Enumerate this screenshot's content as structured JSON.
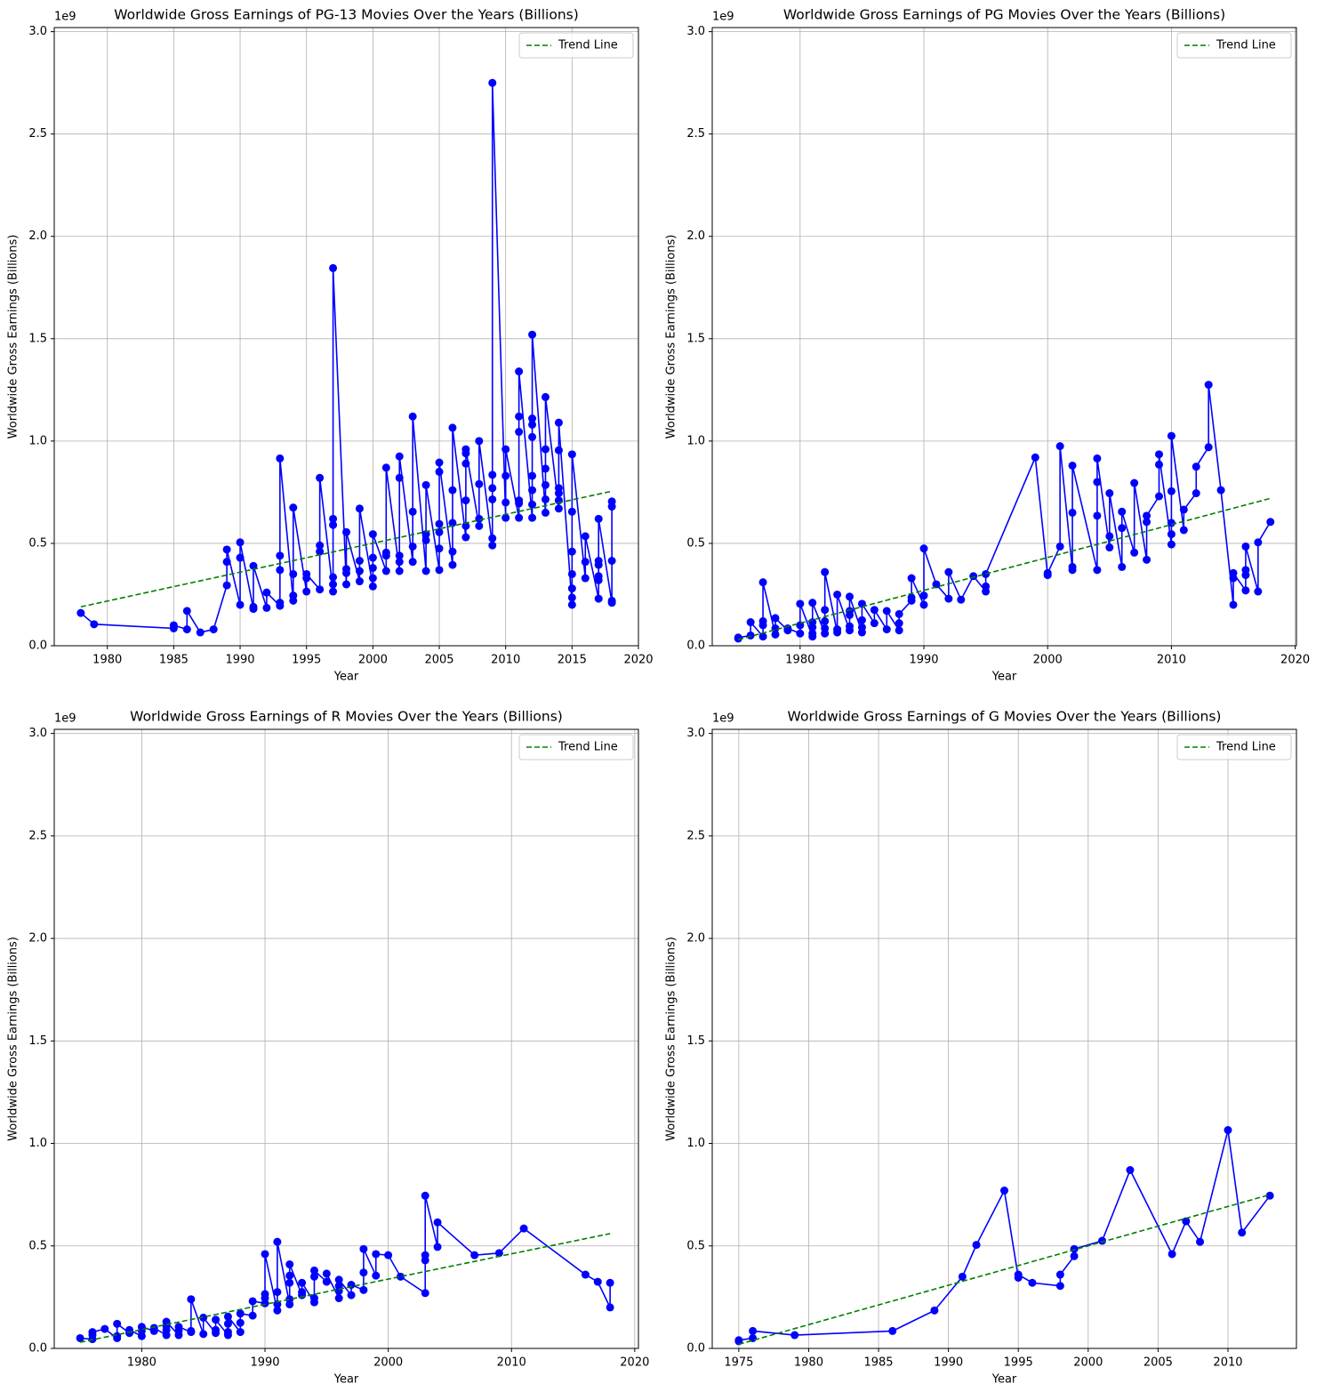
{
  "chart_data": [
    {
      "type": "line",
      "title": "Worldwide Gross Earnings of PG-13 Movies Over the Years (Billions)",
      "x_label": "Year",
      "y_label": "Worldwide Gross Earnings (Billions)",
      "y_offset_label": "1e9",
      "xlim": [
        1976,
        2020
      ],
      "ylim": [
        0,
        3.02
      ],
      "xticks": [
        1980,
        1985,
        1990,
        1995,
        2000,
        2005,
        2010,
        2015,
        2020
      ],
      "yticks": [
        {
          "value": 0,
          "label": "0.0"
        },
        0.5,
        {
          "value": 1,
          "label": "1.0"
        },
        1.5,
        {
          "value": 2,
          "label": "2.0"
        },
        2.5,
        {
          "value": 3,
          "label": "3.0"
        }
      ],
      "grid": true,
      "legend": "upper right",
      "series": [
        {
          "color": "#0000ff",
          "marker": "circle",
          "x": [
            1978,
            1979,
            1985,
            1985,
            1986,
            1986,
            1987,
            1988,
            1989,
            1989,
            1989,
            1990,
            1990,
            1990,
            1991,
            1991,
            1991,
            1992,
            1992,
            1993,
            1993,
            1993,
            1993,
            1993,
            1994,
            1994,
            1994,
            1994,
            1995,
            1995,
            1995,
            1996,
            1996,
            1996,
            1996,
            1997,
            1997,
            1997,
            1997,
            1997,
            1997,
            1998,
            1998,
            1998,
            1998,
            1999,
            1999,
            1999,
            1999,
            2000,
            2000,
            2000,
            2000,
            2000,
            2001,
            2001,
            2001,
            2001,
            2002,
            2002,
            2002,
            2002,
            2002,
            2003,
            2003,
            2003,
            2003,
            2004,
            2004,
            2004,
            2004,
            2005,
            2005,
            2005,
            2005,
            2005,
            2005,
            2006,
            2006,
            2006,
            2006,
            2006,
            2007,
            2007,
            2007,
            2007,
            2007,
            2007,
            2008,
            2008,
            2008,
            2008,
            2009,
            2009,
            2009,
            2009,
            2009,
            2009,
            2010,
            2010,
            2010,
            2010,
            2011,
            2011,
            2011,
            2011,
            2011,
            2011,
            2012,
            2012,
            2012,
            2012,
            2012,
            2012,
            2012,
            2012,
            2013,
            2013,
            2013,
            2013,
            2013,
            2013,
            2014,
            2014,
            2014,
            2014,
            2014,
            2014,
            2015,
            2015,
            2015,
            2015,
            2015,
            2015,
            2015,
            2016,
            2016,
            2016,
            2017,
            2017,
            2017,
            2017,
            2017,
            2017,
            2018,
            2018,
            2018,
            2018,
            2018
          ],
          "values": [
            0.16,
            0.105,
            0.085,
            0.1,
            0.08,
            0.17,
            0.065,
            0.08,
            0.295,
            0.41,
            0.47,
            0.2,
            0.43,
            0.505,
            0.18,
            0.19,
            0.39,
            0.185,
            0.26,
            0.195,
            0.21,
            0.37,
            0.44,
            0.915,
            0.22,
            0.245,
            0.35,
            0.675,
            0.265,
            0.33,
            0.35,
            0.275,
            0.46,
            0.49,
            0.82,
            0.265,
            0.3,
            0.335,
            0.59,
            0.62,
            1.845,
            0.3,
            0.355,
            0.375,
            0.555,
            0.315,
            0.365,
            0.415,
            0.67,
            0.29,
            0.33,
            0.38,
            0.43,
            0.545,
            0.365,
            0.44,
            0.455,
            0.87,
            0.365,
            0.41,
            0.44,
            0.82,
            0.925,
            0.41,
            0.485,
            0.655,
            1.12,
            0.365,
            0.515,
            0.545,
            0.785,
            0.37,
            0.475,
            0.555,
            0.595,
            0.85,
            0.895,
            0.395,
            0.46,
            0.6,
            0.76,
            1.065,
            0.53,
            0.585,
            0.71,
            0.89,
            0.94,
            0.96,
            0.585,
            0.62,
            0.79,
            1.0,
            0.49,
            0.525,
            0.715,
            0.77,
            0.835,
            2.75,
            0.625,
            0.7,
            0.83,
            0.96,
            0.625,
            0.695,
            0.71,
            1.045,
            1.12,
            1.34,
            0.625,
            0.69,
            0.76,
            0.83,
            1.02,
            1.08,
            1.11,
            1.52,
            0.65,
            0.715,
            0.785,
            0.865,
            0.96,
            1.215,
            0.67,
            0.71,
            0.745,
            0.77,
            0.955,
            1.09,
            0.2,
            0.235,
            0.28,
            0.35,
            0.46,
            0.655,
            0.935,
            0.33,
            0.41,
            0.535,
            0.23,
            0.32,
            0.34,
            0.395,
            0.415,
            0.62,
            0.21,
            0.22,
            0.415,
            0.68,
            0.705
          ]
        },
        {
          "name": "Trend Line",
          "color": "#008000",
          "linestyle": "dashed",
          "x": [
            1978,
            2018
          ],
          "values": [
            0.19,
            0.755
          ]
        }
      ]
    },
    {
      "type": "line",
      "title": "Worldwide Gross Earnings of PG Movies Over the Years (Billions)",
      "x_label": "Year",
      "y_label": "Worldwide Gross Earnings (Billions)",
      "y_offset_label": "1e9",
      "xlim": [
        1972.9,
        2020.1
      ],
      "ylim": [
        0,
        3.02
      ],
      "xticks": [
        1980,
        1990,
        2000,
        2010,
        2020
      ],
      "yticks": [
        {
          "value": 0,
          "label": "0.0"
        },
        0.5,
        {
          "value": 1,
          "label": "1.0"
        },
        1.5,
        {
          "value": 2,
          "label": "2.0"
        },
        2.5,
        {
          "value": 3,
          "label": "3.0"
        }
      ],
      "grid": true,
      "legend": "upper right",
      "series": [
        {
          "color": "#0000ff",
          "marker": "circle",
          "x": [
            1975,
            1975,
            1976,
            1976,
            1977,
            1977,
            1977,
            1977,
            1978,
            1978,
            1978,
            1979,
            1979,
            1980,
            1980,
            1980,
            1981,
            1981,
            1981,
            1981,
            1981,
            1982,
            1982,
            1982,
            1982,
            1982,
            1983,
            1983,
            1983,
            1984,
            1984,
            1984,
            1984,
            1984,
            1985,
            1985,
            1985,
            1985,
            1986,
            1986,
            1987,
            1987,
            1988,
            1988,
            1988,
            1989,
            1989,
            1989,
            1990,
            1990,
            1990,
            1991,
            1992,
            1992,
            1993,
            1994,
            1995,
            1995,
            1995,
            1999,
            2000,
            2000,
            2001,
            2001,
            2002,
            2002,
            2002,
            2002,
            2004,
            2004,
            2004,
            2004,
            2005,
            2005,
            2005,
            2006,
            2006,
            2006,
            2007,
            2007,
            2008,
            2008,
            2008,
            2009,
            2009,
            2009,
            2010,
            2010,
            2010,
            2010,
            2010,
            2011,
            2011,
            2012,
            2012,
            2013,
            2013,
            2014,
            2015,
            2015,
            2015,
            2016,
            2016,
            2016,
            2016,
            2017,
            2017,
            2018
          ],
          "values": [
            0.035,
            0.04,
            0.05,
            0.115,
            0.045,
            0.1,
            0.12,
            0.31,
            0.055,
            0.085,
            0.135,
            0.075,
            0.085,
            0.06,
            0.1,
            0.205,
            0.045,
            0.06,
            0.09,
            0.115,
            0.21,
            0.06,
            0.085,
            0.12,
            0.175,
            0.36,
            0.065,
            0.08,
            0.25,
            0.075,
            0.095,
            0.15,
            0.17,
            0.24,
            0.065,
            0.09,
            0.125,
            0.205,
            0.11,
            0.175,
            0.08,
            0.17,
            0.075,
            0.11,
            0.155,
            0.22,
            0.235,
            0.33,
            0.2,
            0.245,
            0.475,
            0.3,
            0.23,
            0.36,
            0.225,
            0.34,
            0.265,
            0.29,
            0.35,
            0.92,
            0.345,
            0.355,
            0.485,
            0.975,
            0.37,
            0.385,
            0.65,
            0.88,
            0.37,
            0.635,
            0.8,
            0.915,
            0.48,
            0.535,
            0.745,
            0.385,
            0.575,
            0.655,
            0.455,
            0.795,
            0.42,
            0.605,
            0.635,
            0.73,
            0.885,
            0.935,
            0.495,
            0.545,
            0.6,
            0.755,
            1.025,
            0.565,
            0.665,
            0.745,
            0.875,
            0.97,
            1.275,
            0.76,
            0.2,
            0.33,
            0.355,
            0.27,
            0.345,
            0.37,
            0.485,
            0.265,
            0.505,
            0.605
          ]
        },
        {
          "name": "Trend Line",
          "color": "#008000",
          "linestyle": "dashed",
          "x": [
            1975,
            2018
          ],
          "values": [
            0.03,
            0.72
          ]
        }
      ]
    },
    {
      "type": "line",
      "title": "Worldwide Gross Earnings of R Movies Over the Years (Billions)",
      "x_label": "Year",
      "y_label": "Worldwide Gross Earnings (Billions)",
      "y_offset_label": "1e9",
      "xlim": [
        1972.9,
        2020.3
      ],
      "ylim": [
        0,
        3.02
      ],
      "xticks": [
        1980,
        1990,
        2000,
        2010,
        2020
      ],
      "yticks": [
        {
          "value": 0,
          "label": "0.0"
        },
        0.5,
        {
          "value": 1,
          "label": "1.0"
        },
        1.5,
        {
          "value": 2,
          "label": "2.0"
        },
        2.5,
        {
          "value": 3,
          "label": "3.0"
        }
      ],
      "grid": true,
      "legend": "upper right",
      "series": [
        {
          "color": "#0000ff",
          "marker": "circle",
          "x": [
            1975,
            1976,
            1976,
            1976,
            1977,
            1978,
            1978,
            1978,
            1979,
            1979,
            1980,
            1980,
            1980,
            1981,
            1981,
            1982,
            1982,
            1982,
            1982,
            1983,
            1983,
            1983,
            1984,
            1984,
            1984,
            1985,
            1985,
            1986,
            1986,
            1986,
            1987,
            1987,
            1987,
            1987,
            1988,
            1988,
            1988,
            1989,
            1989,
            1990,
            1990,
            1990,
            1990,
            1991,
            1991,
            1991,
            1991,
            1992,
            1992,
            1992,
            1992,
            1992,
            1993,
            1993,
            1993,
            1994,
            1994,
            1994,
            1994,
            1995,
            1995,
            1996,
            1996,
            1996,
            1996,
            1997,
            1997,
            1998,
            1998,
            1998,
            1999,
            1999,
            2000,
            2001,
            2003,
            2003,
            2003,
            2003,
            2004,
            2004,
            2007,
            2009,
            2011,
            2016,
            2017,
            2018,
            2018
          ],
          "values": [
            0.05,
            0.045,
            0.065,
            0.08,
            0.095,
            0.05,
            0.06,
            0.12,
            0.075,
            0.09,
            0.06,
            0.085,
            0.105,
            0.085,
            0.1,
            0.065,
            0.09,
            0.11,
            0.13,
            0.065,
            0.085,
            0.105,
            0.08,
            0.085,
            0.24,
            0.07,
            0.15,
            0.075,
            0.09,
            0.14,
            0.065,
            0.08,
            0.12,
            0.155,
            0.08,
            0.125,
            0.17,
            0.16,
            0.23,
            0.22,
            0.245,
            0.265,
            0.46,
            0.185,
            0.215,
            0.275,
            0.52,
            0.215,
            0.24,
            0.32,
            0.355,
            0.41,
            0.26,
            0.275,
            0.32,
            0.225,
            0.245,
            0.35,
            0.38,
            0.325,
            0.365,
            0.245,
            0.28,
            0.305,
            0.335,
            0.26,
            0.31,
            0.285,
            0.37,
            0.485,
            0.355,
            0.46,
            0.455,
            0.35,
            0.27,
            0.43,
            0.455,
            0.745,
            0.495,
            0.615,
            0.455,
            0.465,
            0.585,
            0.36,
            0.325,
            0.2,
            0.32
          ]
        },
        {
          "name": "Trend Line",
          "color": "#008000",
          "linestyle": "dashed",
          "x": [
            1975,
            2018
          ],
          "values": [
            0.03,
            0.56
          ]
        }
      ]
    },
    {
      "type": "line",
      "title": "Worldwide Gross Earnings of G Movies Over the Years (Billions)",
      "x_label": "Year",
      "y_label": "Worldwide Gross Earnings (Billions)",
      "y_offset_label": "1e9",
      "xlim": [
        1973.1,
        2014.9
      ],
      "ylim": [
        0,
        3.02
      ],
      "xticks": [
        1975,
        1980,
        1985,
        1990,
        1995,
        2000,
        2005,
        2010
      ],
      "yticks": [
        {
          "value": 0,
          "label": "0.0"
        },
        0.5,
        {
          "value": 1,
          "label": "1.0"
        },
        1.5,
        {
          "value": 2,
          "label": "2.0"
        },
        2.5,
        {
          "value": 3,
          "label": "3.0"
        }
      ],
      "grid": true,
      "legend": "upper right",
      "series": [
        {
          "color": "#0000ff",
          "marker": "circle",
          "x": [
            1975,
            1975,
            1976,
            1976,
            1979,
            1986,
            1989,
            1991,
            1992,
            1994,
            1995,
            1995,
            1996,
            1998,
            1998,
            1999,
            1999,
            2001,
            2003,
            2006,
            2007,
            2008,
            2010,
            2011,
            2013
          ],
          "values": [
            0.035,
            0.04,
            0.05,
            0.085,
            0.065,
            0.085,
            0.185,
            0.35,
            0.505,
            0.77,
            0.345,
            0.36,
            0.32,
            0.305,
            0.36,
            0.45,
            0.485,
            0.525,
            0.87,
            0.46,
            0.62,
            0.52,
            1.065,
            0.565,
            0.745
          ]
        },
        {
          "name": "Trend Line",
          "color": "#008000",
          "linestyle": "dashed",
          "x": [
            1975,
            2013
          ],
          "values": [
            0.02,
            0.75
          ]
        }
      ]
    }
  ]
}
